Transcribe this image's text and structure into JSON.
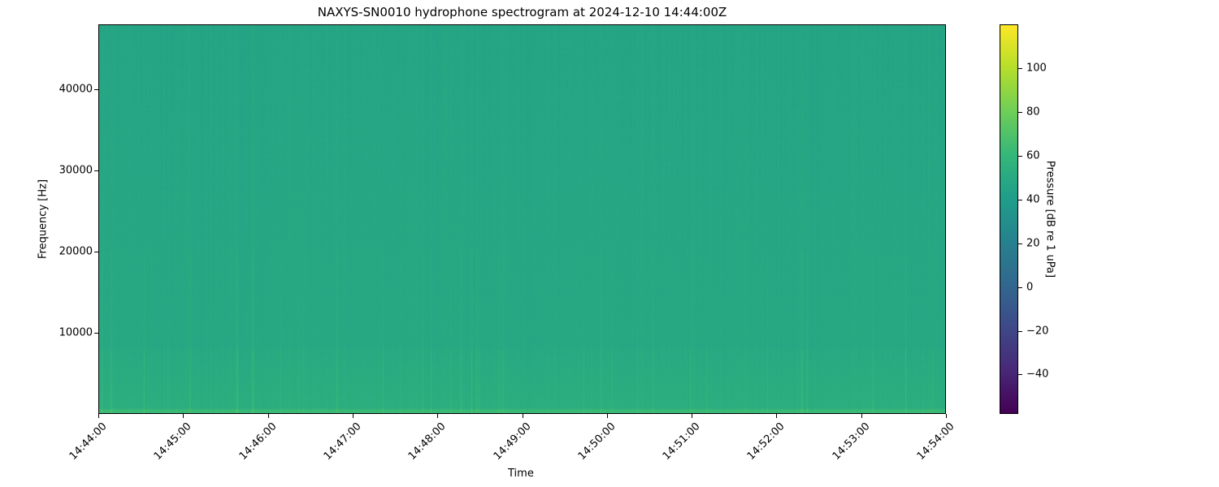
{
  "chart_data": {
    "type": "heatmap",
    "title": "NAXYS-SN0010 hydrophone spectrogram at 2024-12-10 14:44:00Z",
    "xlabel": "Time",
    "ylabel": "Frequency [Hz]",
    "xlim": [
      "14:44:00",
      "14:54:00"
    ],
    "ylim": [
      0,
      48000
    ],
    "x_ticks": [
      "14:44:00",
      "14:45:00",
      "14:46:00",
      "14:47:00",
      "14:48:00",
      "14:49:00",
      "14:50:00",
      "14:51:00",
      "14:52:00",
      "14:53:00",
      "14:54:00"
    ],
    "y_ticks": [
      10000,
      20000,
      30000,
      40000
    ],
    "colormap": "viridis",
    "colorbar": {
      "label": "Pressure [dB re 1 uPa]",
      "range": [
        -58,
        120
      ],
      "ticks": [
        -40,
        -20,
        0,
        20,
        40,
        60,
        80,
        100
      ]
    },
    "approx_levels_db": {
      "below_600_hz": 62,
      "600_to_8000_hz": 53,
      "above_8000_hz": 49
    },
    "grid": false
  }
}
